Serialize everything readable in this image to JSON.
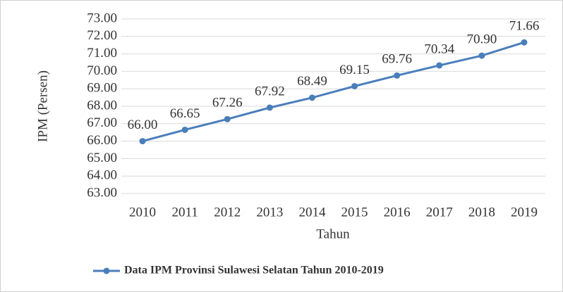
{
  "chart_data": {
    "type": "line",
    "x_label": "Tahun",
    "y_label": "IPM (Persen)",
    "categories": [
      "2010",
      "2011",
      "2012",
      "2013",
      "2014",
      "2015",
      "2016",
      "2017",
      "2018",
      "2019"
    ],
    "series": [
      {
        "name": "Data IPM Provinsi Sulawesi Selatan Tahun 2010-2019",
        "color": "#4a7ebb",
        "values": [
          66,
          66.65,
          67.26,
          67.92,
          68.49,
          69.15,
          69.76,
          70.34,
          70.9,
          71.66
        ],
        "value_labels": [
          "66.00",
          "66.65",
          "67.26",
          "67.92",
          "68.49",
          "69.15",
          "69.76",
          "70.34",
          "70.90",
          "71.66"
        ]
      }
    ],
    "ylim": [
      63,
      73
    ],
    "yticks": [
      {
        "value": 63,
        "label": "63.00"
      },
      {
        "value": 64,
        "label": "64.00"
      },
      {
        "value": 65,
        "label": "65.00"
      },
      {
        "value": 66,
        "label": "66.00"
      },
      {
        "value": 67,
        "label": "67.00"
      },
      {
        "value": 68,
        "label": "68.00"
      },
      {
        "value": 69,
        "label": "69.00"
      },
      {
        "value": 70,
        "label": "70.00"
      },
      {
        "value": 71,
        "label": "71.00"
      },
      {
        "value": 72,
        "label": "72.00"
      },
      {
        "value": 73,
        "label": "73.00"
      }
    ],
    "grid": true,
    "legend": "bottom"
  }
}
